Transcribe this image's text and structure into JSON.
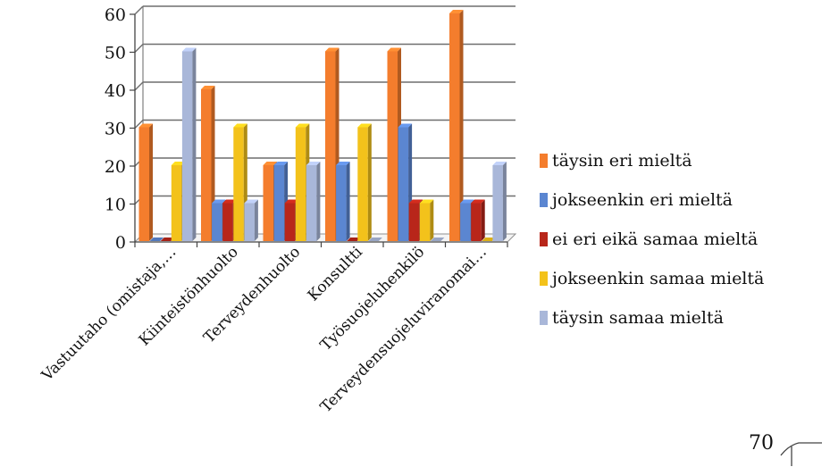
{
  "chart_data": {
    "type": "bar",
    "categories": [
      "Vastuutaho (omistaja,…",
      "Kiinteistönhuolto",
      "Terveydenhuolto",
      "Konsultti",
      "Työsuojeluhenkilö",
      "Terveydensuojeluviranomai…"
    ],
    "series": [
      {
        "name": "täysin eri mieltä",
        "color": "#f47d2d",
        "values": [
          30,
          40,
          20,
          50,
          50,
          60
        ]
      },
      {
        "name": "jokseenkin eri mieltä",
        "color": "#5b86d1",
        "values": [
          0,
          10,
          20,
          20,
          30,
          10
        ]
      },
      {
        "name": "ei eri eikä samaa mieltä",
        "color": "#b8261a",
        "values": [
          0,
          10,
          10,
          0,
          10,
          10
        ]
      },
      {
        "name": "jokseenkin samaa mieltä",
        "color": "#f3c21b",
        "values": [
          20,
          30,
          30,
          30,
          10,
          0
        ]
      },
      {
        "name": "täysin samaa mieltä",
        "color": "#a9b7d9",
        "values": [
          50,
          10,
          20,
          0,
          0,
          20
        ]
      }
    ],
    "ylim": [
      0,
      60
    ],
    "yticks": [
      "0",
      "10",
      "20",
      "30",
      "40",
      "50",
      "60"
    ],
    "grid": true,
    "legend_position": "right"
  },
  "page": {
    "number": "70"
  }
}
